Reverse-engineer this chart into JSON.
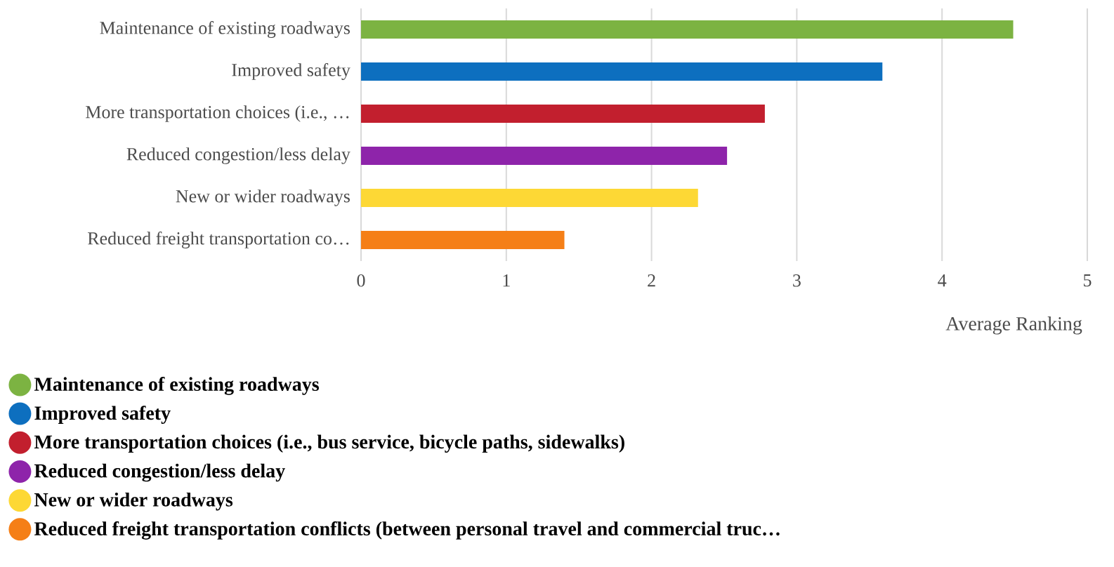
{
  "chart_data": {
    "type": "bar",
    "orientation": "horizontal",
    "xlabel": "Average Ranking",
    "categories": [
      "Maintenance of existing roadways",
      "Improved safety",
      "More transportation choices (i.e., …",
      "Reduced congestion/less delay",
      "New or wider roadways",
      "Reduced freight transportation co…"
    ],
    "series": [
      {
        "name": "Maintenance of existing roadways",
        "color": "#7cb342",
        "values": [
          4.49,
          null,
          null,
          null,
          null,
          null
        ]
      },
      {
        "name": "Improved safety",
        "color": "#0d6fbf",
        "values": [
          null,
          3.59,
          null,
          null,
          null,
          null
        ]
      },
      {
        "name": "More transportation choices (i.e., bus service, bicycle paths, sidewalks)",
        "color": "#c21f2e",
        "values": [
          null,
          null,
          2.78,
          null,
          null,
          null
        ]
      },
      {
        "name": "Reduced congestion/less delay",
        "color": "#8e24aa",
        "values": [
          null,
          null,
          null,
          2.52,
          null,
          null
        ]
      },
      {
        "name": "New or wider roadways",
        "color": "#fdd835",
        "values": [
          null,
          null,
          null,
          null,
          2.32,
          null
        ]
      },
      {
        "name": "Reduced freight transportation conflicts (between personal travel and commercial truc…",
        "color": "#f57f17",
        "values": [
          null,
          null,
          null,
          null,
          null,
          1.4
        ]
      }
    ],
    "xlim": [
      0,
      5
    ],
    "xticks": [
      0,
      1,
      2,
      3,
      4,
      5
    ],
    "grid": "x",
    "legend": "bottom left"
  }
}
